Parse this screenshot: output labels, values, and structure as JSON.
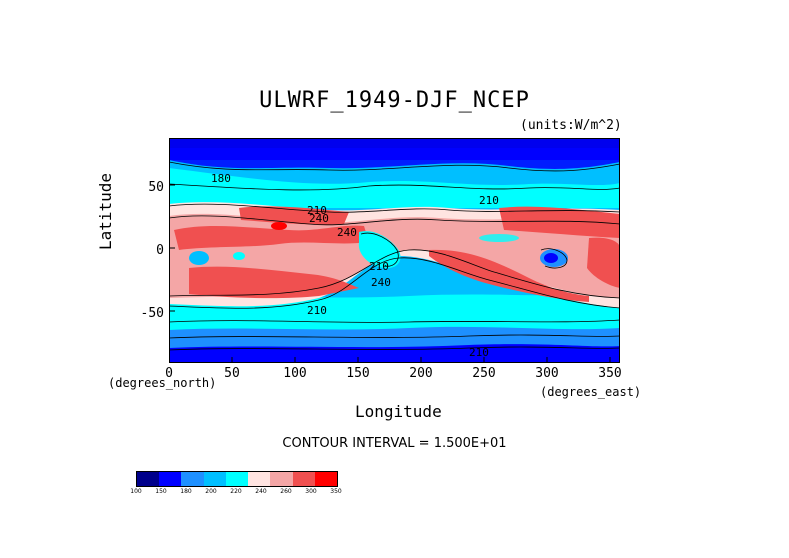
{
  "title": "ULWRF_1949-DJF_NCEP",
  "units": "(units:W/m^2)",
  "y_axis": {
    "label": "Latitude",
    "ticks": [
      "50",
      "0",
      "-50"
    ]
  },
  "x_axis": {
    "label": "Longitude",
    "unit_left": "(degrees_north)",
    "unit_right": "(degrees_east)",
    "ticks": [
      "0",
      "50",
      "100",
      "150",
      "200",
      "250",
      "300",
      "350"
    ]
  },
  "contour_interval": "CONTOUR INTERVAL = 1.500E+01",
  "contour_labels": [
    "180",
    "210",
    "240",
    "240",
    "210",
    "240",
    "210",
    "210",
    "210"
  ],
  "colorbar": {
    "labels": [
      "100",
      "150",
      "180",
      "200",
      "220",
      "240",
      "260",
      "300",
      "350"
    ],
    "colors": [
      "#00008b",
      "#0000ff",
      "#1e90ff",
      "#00bfff",
      "#00ffff",
      "#ffe4e1",
      "#f4a6a6",
      "#f05050",
      "#ff0000"
    ]
  },
  "chart_data": {
    "type": "heatmap",
    "title": "ULWRF_1949-DJF_NCEP",
    "xlabel": "Longitude",
    "ylabel": "Latitude",
    "xlim": [
      0,
      357
    ],
    "ylim": [
      -90,
      90
    ],
    "color_levels": [
      100,
      150,
      180,
      200,
      220,
      240,
      260,
      300,
      350
    ]
  }
}
